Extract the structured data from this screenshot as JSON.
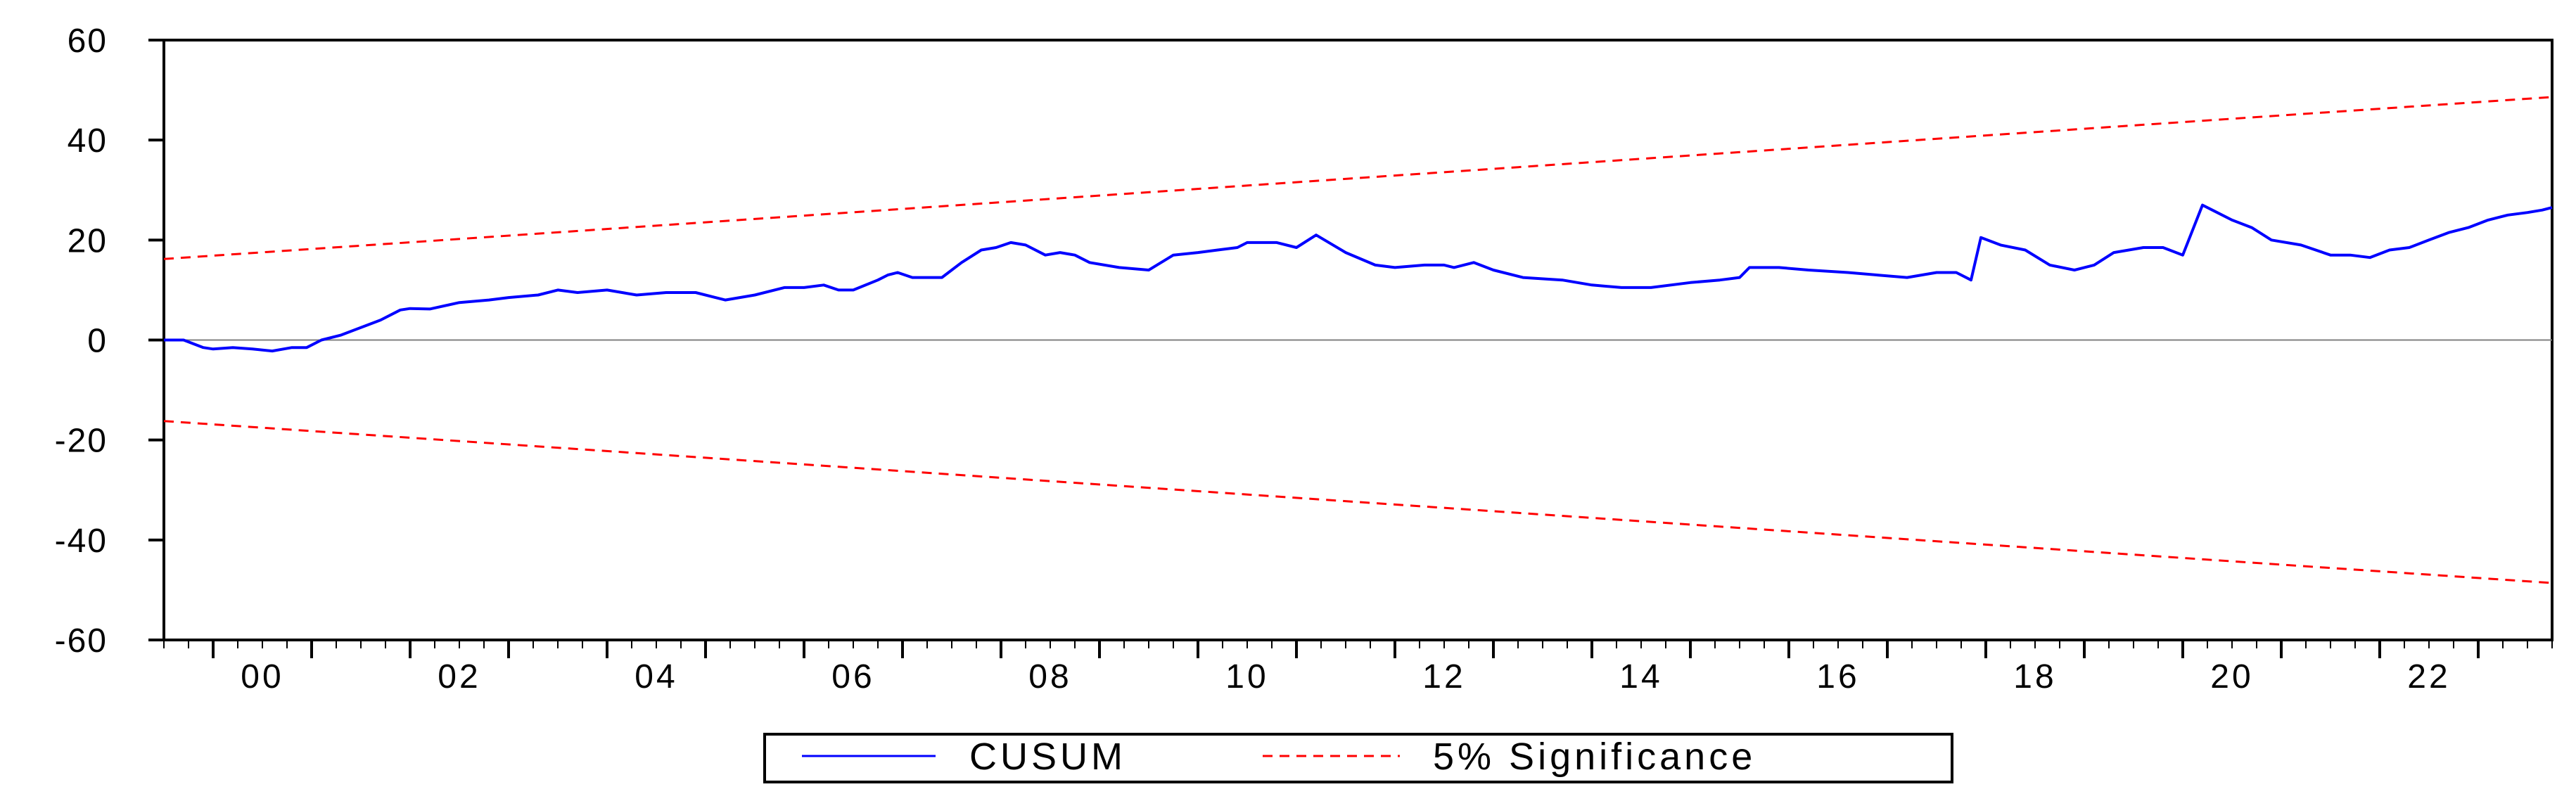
{
  "colors": {
    "cusum": "#0000ff",
    "significance": "#ff0000",
    "axis": "#000000",
    "zero_line": "#808080",
    "background": "#ffffff"
  },
  "legend": {
    "placement": "bottom-center",
    "cusum_label": "CUSUM",
    "significance_label": "5% Significance"
  },
  "chart_data": {
    "type": "line",
    "title": "",
    "xlabel": "",
    "ylabel": "",
    "ylim": [
      -60,
      60
    ],
    "yticks": [
      60,
      40,
      20,
      0,
      -20,
      -40,
      -60
    ],
    "xlim": [
      1999.5,
      2023.75
    ],
    "x_tick_labels": [
      {
        "year": 2000,
        "label": "00"
      },
      {
        "year": 2002,
        "label": "02"
      },
      {
        "year": 2004,
        "label": "04"
      },
      {
        "year": 2006,
        "label": "06"
      },
      {
        "year": 2008,
        "label": "08"
      },
      {
        "year": 2010,
        "label": "10"
      },
      {
        "year": 2012,
        "label": "12"
      },
      {
        "year": 2014,
        "label": "14"
      },
      {
        "year": 2016,
        "label": "16"
      },
      {
        "year": 2018,
        "label": "18"
      },
      {
        "year": 2020,
        "label": "20"
      },
      {
        "year": 2022,
        "label": "22"
      }
    ],
    "zero_line": true,
    "series": [
      {
        "name": "CUSUM",
        "style": "solid",
        "x": [
          1999.5,
          1999.7,
          1999.9,
          2000.0,
          2000.2,
          2000.4,
          2000.6,
          2000.8,
          2000.95,
          2001.1,
          2001.3,
          2001.5,
          2001.7,
          2001.9,
          2002.0,
          2002.2,
          2002.5,
          2002.8,
          2003.0,
          2003.3,
          2003.5,
          2003.7,
          2004.0,
          2004.3,
          2004.6,
          2004.9,
          2005.2,
          2005.5,
          2005.8,
          2006.0,
          2006.2,
          2006.35,
          2006.5,
          2006.75,
          2006.85,
          2006.95,
          2007.1,
          2007.25,
          2007.4,
          2007.6,
          2007.8,
          2007.95,
          2008.1,
          2008.25,
          2008.45,
          2008.6,
          2008.75,
          2008.9,
          2009.2,
          2009.5,
          2009.75,
          2010.0,
          2010.2,
          2010.4,
          2010.5,
          2010.6,
          2010.8,
          2011.0,
          2011.2,
          2011.5,
          2011.8,
          2012.0,
          2012.3,
          2012.5,
          2012.6,
          2012.8,
          2013.0,
          2013.3,
          2013.7,
          2014.0,
          2014.3,
          2014.6,
          2015.0,
          2015.3,
          2015.5,
          2015.6,
          2015.9,
          2016.2,
          2016.6,
          2016.9,
          2017.2,
          2017.5,
          2017.7,
          2017.85,
          2017.95,
          2018.15,
          2018.4,
          2018.65,
          2018.9,
          2019.1,
          2019.3,
          2019.6,
          2019.8,
          2020.0,
          2020.2,
          2020.3,
          2020.5,
          2020.7,
          2020.9,
          2021.2,
          2021.5,
          2021.7,
          2021.9,
          2022.1,
          2022.3,
          2022.5,
          2022.7,
          2022.9,
          2023.1,
          2023.3,
          2023.5,
          2023.65,
          2023.75
        ],
        "y": [
          0,
          0,
          -1.5,
          -1.8,
          -1.5,
          -1.8,
          -2.2,
          -1.5,
          -1.5,
          0,
          1,
          2.5,
          4,
          6,
          6.3,
          6.2,
          7.5,
          8,
          8.5,
          9,
          10,
          9.5,
          10,
          9,
          9.5,
          9.5,
          8,
          9,
          10.5,
          10.5,
          11,
          10,
          10,
          12,
          13,
          13.5,
          12.5,
          12.5,
          12.5,
          15.5,
          18,
          18.5,
          19.5,
          19,
          17,
          17.5,
          17,
          15.5,
          14.5,
          14,
          17,
          17.5,
          18,
          18.5,
          19.5,
          19.5,
          19.5,
          18.5,
          21,
          17.5,
          15,
          14.5,
          15,
          15,
          14.5,
          15.5,
          14,
          12.5,
          12,
          11,
          10.5,
          10.5,
          11.5,
          12,
          12.5,
          14.5,
          14.5,
          14,
          13.5,
          13,
          12.5,
          13.5,
          13.5,
          12,
          20.5,
          19,
          18,
          15,
          14,
          15,
          17.5,
          18.5,
          18.5,
          17,
          27,
          26,
          24,
          22.5,
          20,
          19,
          17,
          17,
          16.5,
          18,
          18.5,
          20,
          21.5,
          22.5,
          24,
          25,
          25.5,
          26,
          26.5
        ]
      },
      {
        "name": "5% Significance",
        "style": "dashed",
        "x": [
          1999.5,
          2023.75
        ],
        "y": [
          16.2,
          48.6
        ]
      },
      {
        "name": "5% Significance",
        "style": "dashed",
        "x": [
          1999.5,
          2023.75
        ],
        "y": [
          -16.2,
          -48.6
        ]
      }
    ]
  }
}
